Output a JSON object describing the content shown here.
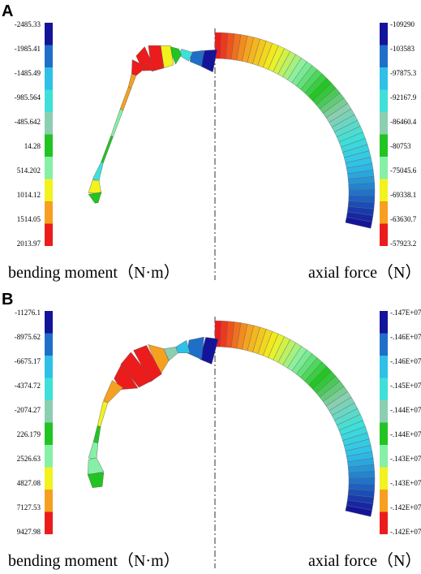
{
  "panels": [
    {
      "label": "A",
      "left_scale": [
        "-2485.33",
        "-1985.41",
        "-1485.49",
        "-985.564",
        "-485.642",
        "14.28",
        "514.202",
        "1014.12",
        "1514.05",
        "2013.97"
      ],
      "right_scale": [
        "-109290",
        "-103583",
        "-97875.3",
        "-92167.9",
        "-86460.4",
        "-80753",
        "-75045.6",
        "-69338.1",
        "-63630.7",
        "-57923.2"
      ],
      "left_caption": "bending moment（N·m）",
      "right_caption": "axial force（N）"
    },
    {
      "label": "B",
      "left_scale": [
        "-11276.1",
        "-8975.62",
        "-6675.17",
        "-4374.72",
        "-2074.27",
        "226.179",
        "2526.63",
        "4827.08",
        "7127.53",
        "9427.98"
      ],
      "right_scale": [
        "-.147E+07",
        "-.146E+07",
        "-.146E+07",
        "-.145E+07",
        "-.144E+07",
        "-.144E+07",
        "-.143E+07",
        "-.143E+07",
        "-.142E+07",
        "-.142E+07"
      ],
      "left_caption": "bending moment（N·m）",
      "right_caption": "axial force（N）"
    }
  ]
}
